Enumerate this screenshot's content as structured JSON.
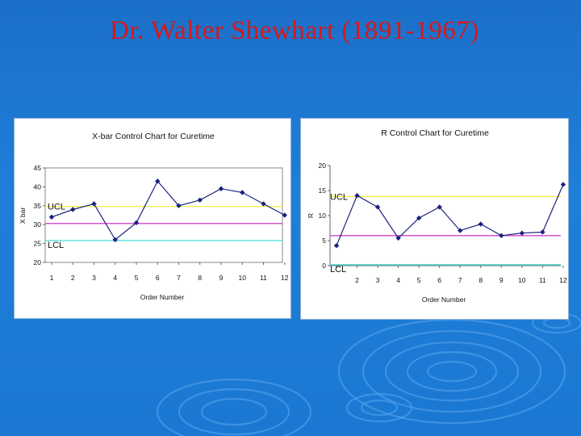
{
  "slide": {
    "title": "Dr. Walter Shewhart (1891-1967)"
  },
  "colors": {
    "background": "#1f7fd8",
    "title": "#d81818",
    "ucl": "#eeee44",
    "center": "#cc44cc",
    "lcl": "#44dddd",
    "series": "#1a237e"
  },
  "chart_data": [
    {
      "type": "line",
      "title": "X-bar Control Chart for Curetime",
      "xlabel": "Order Number",
      "ylabel": "X bar",
      "x": [
        1,
        2,
        3,
        4,
        5,
        6,
        7,
        8,
        9,
        10,
        11,
        12
      ],
      "x_tick_labels": [
        "1",
        "2",
        "3",
        "4",
        "5",
        "6",
        "7",
        "8",
        "9",
        "10",
        "11",
        "12"
      ],
      "series": [
        {
          "values": [
            32.0,
            34.0,
            35.5,
            26.0,
            30.5,
            41.5,
            35.0,
            36.5,
            39.5,
            38.5,
            35.5,
            32.5
          ]
        }
      ],
      "ylim": [
        20,
        45
      ],
      "y_ticks": [
        20,
        25,
        30,
        35,
        40,
        45
      ],
      "y_tick_labels": [
        "20",
        "25",
        "30",
        "35",
        "40",
        "45"
      ],
      "control_limits": [
        {
          "label": "UCL",
          "value": 34.8
        },
        {
          "label": "",
          "value": 30.3
        },
        {
          "label": "LCL",
          "value": 25.8
        }
      ],
      "grid": false
    },
    {
      "type": "line",
      "title": "R Control Chart for Curetime",
      "xlabel": "Order Number",
      "ylabel": "R",
      "x": [
        1,
        2,
        3,
        4,
        5,
        6,
        7,
        8,
        9,
        10,
        11,
        12
      ],
      "x_tick_labels": [
        "",
        "2",
        "3",
        "4",
        "5",
        "6",
        "7",
        "8",
        "9",
        "10",
        "11",
        "12"
      ],
      "series": [
        {
          "values": [
            4.0,
            14.0,
            11.7,
            5.5,
            9.5,
            11.7,
            7.0,
            8.3,
            6.0,
            6.5,
            6.7,
            16.2
          ]
        }
      ],
      "ylim": [
        0,
        20
      ],
      "y_ticks": [
        0,
        5,
        10,
        15,
        20
      ],
      "y_tick_labels": [
        "0",
        "5",
        "10",
        "15",
        "20"
      ],
      "control_limits": [
        {
          "label": "UCL",
          "value": 13.8
        },
        {
          "label": "",
          "value": 6.0
        },
        {
          "label": "LCL",
          "value": 0.2
        }
      ],
      "grid": false
    }
  ]
}
